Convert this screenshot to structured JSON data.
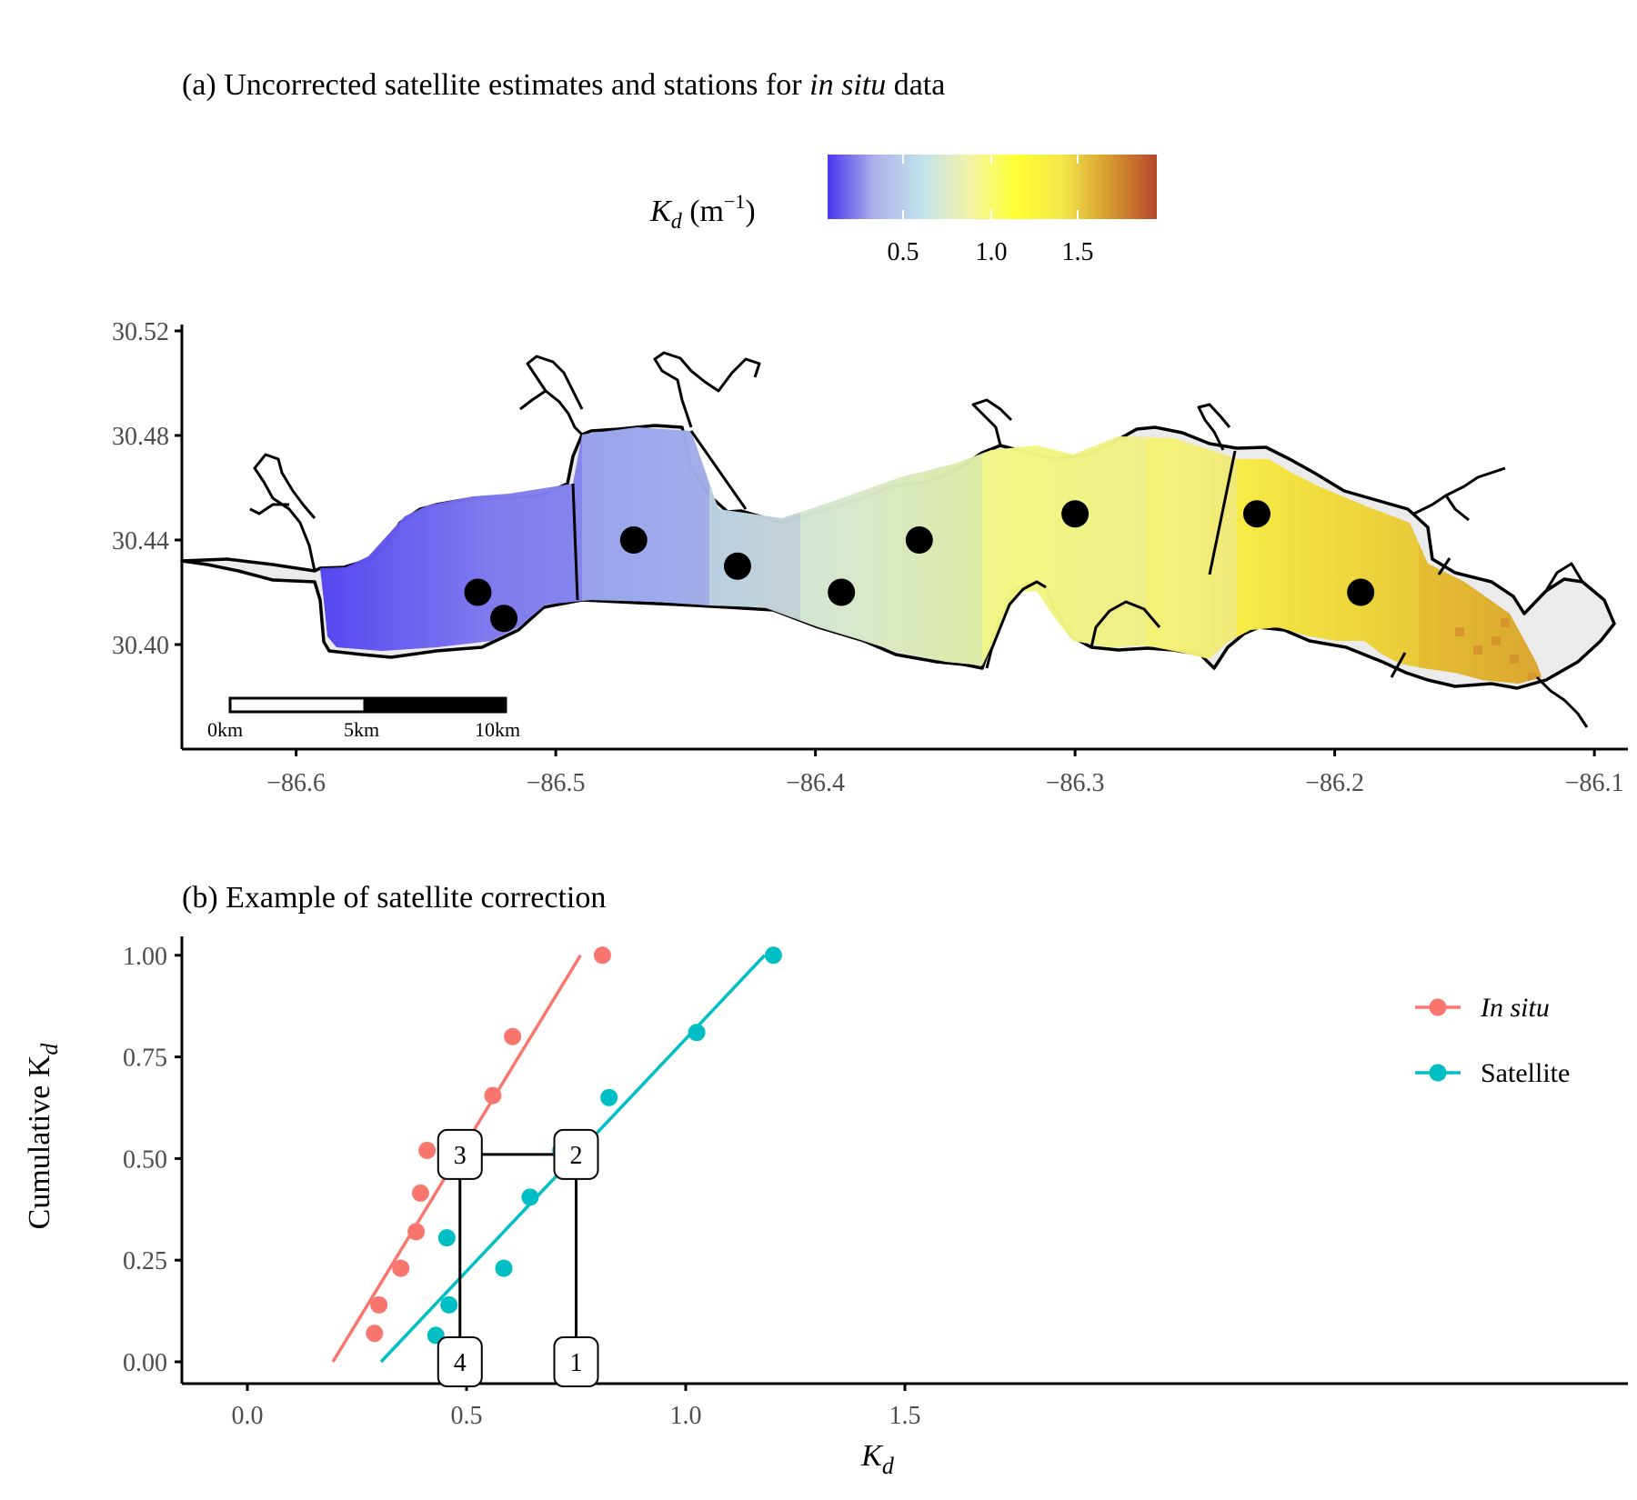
{
  "panel_a": {
    "title_pre": "(a) Uncorrected satellite estimates and stations for ",
    "title_italic": "in situ",
    "title_post": " data",
    "colorbar": {
      "label_main": "K",
      "label_sub": "d",
      "label_unit": " (m",
      "label_sup": "−1",
      "label_close": ")",
      "ticks": [
        "0.5",
        "1.0",
        "1.5"
      ],
      "colors": [
        "#4a36f0",
        "#aeb2ea",
        "#bfe2ea",
        "#f2f2a8",
        "#ffff33",
        "#f2e64a",
        "#d69a2e",
        "#b5472b"
      ]
    },
    "yticks": [
      "30.52",
      "30.48",
      "30.44",
      "30.40"
    ],
    "xticks": [
      "−86.6",
      "−86.5",
      "−86.4",
      "−86.3",
      "−86.2",
      "−86.1"
    ],
    "scalebar": [
      "0km",
      "5km",
      "10km"
    ],
    "stations": [
      {
        "lon": -86.53,
        "lat": 30.42
      },
      {
        "lon": -86.52,
        "lat": 30.41
      },
      {
        "lon": -86.47,
        "lat": 30.44
      },
      {
        "lon": -86.43,
        "lat": 30.43
      },
      {
        "lon": -86.39,
        "lat": 30.42
      },
      {
        "lon": -86.36,
        "lat": 30.44
      },
      {
        "lon": -86.3,
        "lat": 30.45
      },
      {
        "lon": -86.23,
        "lat": 30.45
      },
      {
        "lon": -86.19,
        "lat": 30.42
      }
    ]
  },
  "chart_data": {
    "type": "scatter",
    "title": "(b) Example of satellite correction",
    "xlabel": "K",
    "xlabel_sub": "d",
    "ylabel": "Cumulative K",
    "ylabel_sub": "d",
    "xlim": [
      -0.07,
      1.57
    ],
    "ylim": [
      -0.05,
      1.05
    ],
    "xticks": [
      "0.0",
      "0.5",
      "1.0",
      "1.5"
    ],
    "yticks": [
      "0.00",
      "0.25",
      "0.50",
      "0.75",
      "1.00"
    ],
    "grid": false,
    "legend_position": "right",
    "series": [
      {
        "name": "In situ",
        "color": "#f8766d",
        "points": [
          [
            0.29,
            0.07
          ],
          [
            0.3,
            0.14
          ],
          [
            0.35,
            0.23
          ],
          [
            0.385,
            0.32
          ],
          [
            0.395,
            0.415
          ],
          [
            0.41,
            0.52
          ],
          [
            0.56,
            0.655
          ],
          [
            0.605,
            0.8
          ],
          [
            0.81,
            1.0
          ]
        ],
        "fit": [
          [
            0.195,
            0.0
          ],
          [
            0.76,
            1.0
          ]
        ]
      },
      {
        "name": "Satellite",
        "color": "#00bfc4",
        "points": [
          [
            0.43,
            0.065
          ],
          [
            0.46,
            0.14
          ],
          [
            0.455,
            0.305
          ],
          [
            0.585,
            0.23
          ],
          [
            0.645,
            0.405
          ],
          [
            0.715,
            0.52
          ],
          [
            0.825,
            0.65
          ],
          [
            1.025,
            0.81
          ],
          [
            1.2,
            1.0
          ]
        ],
        "fit": [
          [
            0.305,
            0.0
          ],
          [
            1.18,
            1.0
          ]
        ]
      }
    ],
    "correction_path": [
      [
        0.75,
        0.0
      ],
      [
        0.75,
        0.51
      ],
      [
        0.485,
        0.51
      ],
      [
        0.485,
        0.0
      ]
    ],
    "markers": [
      {
        "label": "1",
        "x": 0.75,
        "y": 0.0
      },
      {
        "label": "2",
        "x": 0.75,
        "y": 0.51
      },
      {
        "label": "3",
        "x": 0.485,
        "y": 0.51
      },
      {
        "label": "4",
        "x": 0.485,
        "y": 0.0
      }
    ]
  }
}
